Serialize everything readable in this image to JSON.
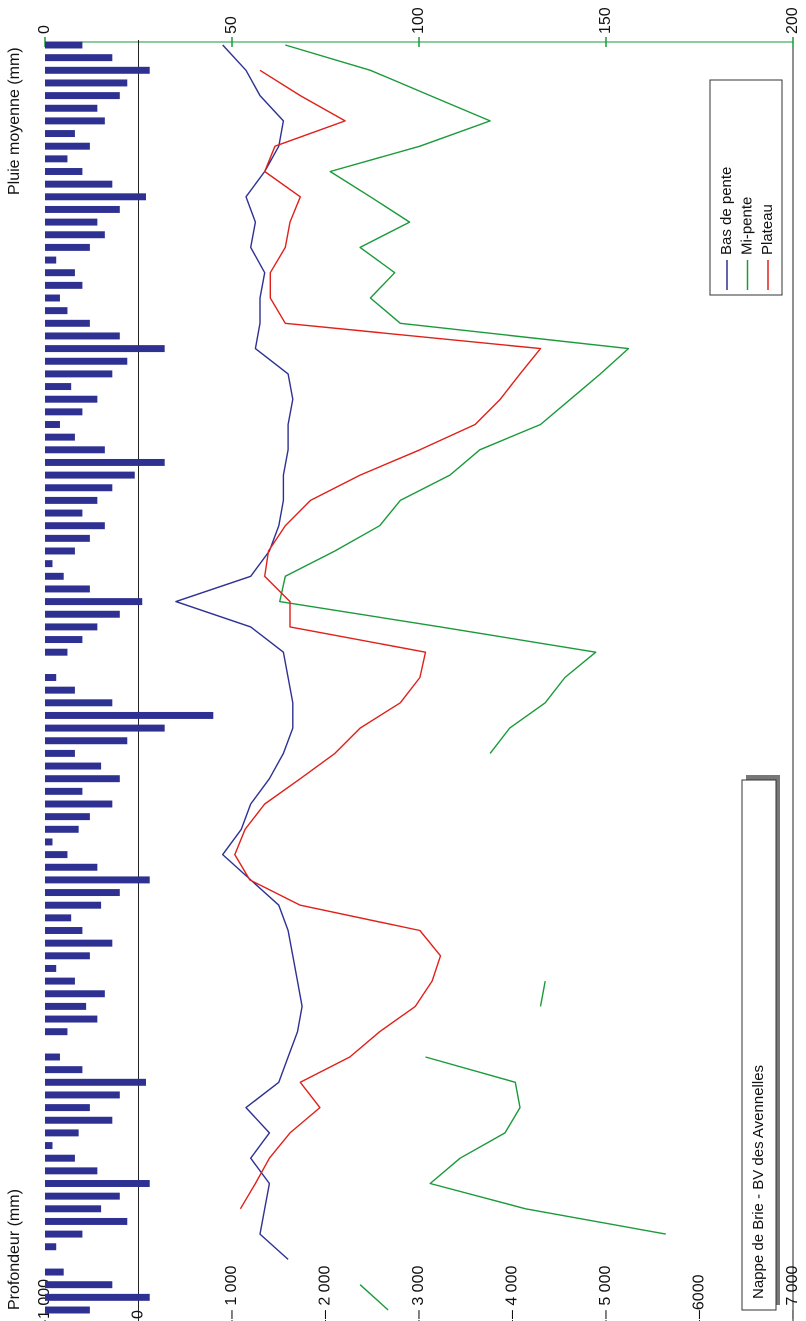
{
  "chart_data": {
    "type": "line",
    "annotation": "Nappe de Brie - BV des Avennelles",
    "y_label": "Profondeur (mm)",
    "y2_label": "Pluie moyenne (mm)",
    "xlim": [
      0,
      100
    ],
    "ylim": [
      -7000,
      1000
    ],
    "yticks": [
      {
        "value": 1000,
        "label": "1 000"
      },
      0,
      {
        "value": -1000,
        "label": "– 1 000"
      },
      {
        "value": -2000,
        "label": "– 2 000"
      },
      {
        "value": -3000,
        "label": "– 3 000"
      },
      {
        "value": -4000,
        "label": "– 4 000"
      },
      {
        "value": -5000,
        "label": "– 5 000"
      },
      {
        "value": -6000,
        "label": "–6000"
      },
      {
        "value": -7000,
        "label": "– 7 000"
      }
    ],
    "y2lim": [
      0,
      200
    ],
    "y2ticks": [
      0,
      50,
      100,
      150,
      200
    ],
    "y2tick_color": "#1a9a3a",
    "legend": "top-right",
    "x": [
      0,
      2,
      4,
      6,
      8,
      10,
      12,
      14,
      16,
      18,
      20,
      22,
      24,
      26,
      28,
      30,
      32,
      34,
      36,
      38,
      40,
      42,
      44,
      46,
      48,
      50,
      52,
      54,
      56,
      58,
      60,
      62,
      64,
      66,
      68,
      70,
      72,
      74,
      76,
      78,
      80,
      82,
      84,
      86,
      88,
      90,
      92,
      94,
      96,
      98,
      100
    ],
    "series": [
      {
        "name": "Bas de pente",
        "color": "#2e3192",
        "values": [
          null,
          null,
          -1600,
          -1300,
          -1350,
          -1400,
          -1200,
          -1400,
          -1150,
          -1500,
          -1600,
          -1700,
          -1750,
          -1700,
          -1650,
          -1600,
          -1500,
          -1200,
          -900,
          -1100,
          -1200,
          -1400,
          -1550,
          -1650,
          -1650,
          -1600,
          -1550,
          -1200,
          -400,
          -1200,
          -1400,
          -1500,
          -1550,
          -1550,
          -1600,
          -1600,
          -1650,
          -1600,
          -1250,
          -1300,
          -1300,
          -1350,
          -1200,
          -1250,
          -1150,
          -1350,
          -1500,
          -1550,
          -1300,
          -1150,
          -900
        ]
      },
      {
        "name": "Mi-pente",
        "color": "#1a9a3a",
        "values": [
          -2670,
          -2370,
          null,
          -5640,
          -4140,
          -3120,
          -3440,
          -3920,
          -4080,
          -4030,
          -3070,
          null,
          -4300,
          -4350,
          null,
          null,
          null,
          null,
          null,
          null,
          null,
          null,
          -3760,
          -3970,
          -4350,
          -4560,
          -4890,
          -3230,
          -1510,
          -1570,
          -2100,
          -2580,
          -2800,
          -3330,
          -3650,
          -4300,
          -4620,
          -4940,
          -5240,
          -2800,
          -2480,
          -2740,
          -2370,
          -2900,
          -2480,
          -2050,
          -3010,
          -3760,
          -3120,
          -2480,
          -1570
        ]
      },
      {
        "name": "Plateau",
        "color": "#e0201a",
        "values": [
          null,
          null,
          null,
          null,
          -1090,
          -1250,
          -1400,
          -1620,
          -1940,
          -1730,
          -2260,
          -2580,
          -2960,
          -3140,
          -3230,
          -3010,
          -1730,
          -1190,
          -1030,
          -1140,
          -1350,
          -1730,
          -2100,
          -2370,
          -2800,
          -3010,
          -3070,
          -1620,
          -1620,
          -1350,
          -1390,
          -1570,
          -1840,
          -2370,
          -3010,
          -3600,
          -3870,
          -4080,
          -4300,
          -1570,
          -1410,
          -1410,
          -1570,
          -1620,
          -1730,
          -1350,
          -1460,
          -2210,
          -1730,
          -1300,
          null
        ]
      }
    ],
    "rain": {
      "type": "bar",
      "axis": "y2",
      "color": "#2e3192",
      "x": [
        0,
        1,
        2,
        3,
        4,
        5,
        6,
        7,
        8,
        9,
        10,
        11,
        12,
        13,
        14,
        15,
        16,
        17,
        18,
        19,
        20,
        21,
        22,
        23,
        24,
        25,
        26,
        27,
        28,
        29,
        30,
        31,
        32,
        33,
        34,
        35,
        36,
        37,
        38,
        39,
        40,
        41,
        42,
        43,
        44,
        45,
        46,
        47,
        48,
        49,
        50,
        51,
        52,
        53,
        54,
        55,
        56,
        57,
        58,
        59,
        60,
        61,
        62,
        63,
        64,
        65,
        66,
        67,
        68,
        69,
        70,
        71,
        72,
        73,
        74,
        75,
        76,
        77,
        78,
        79,
        80,
        81,
        82,
        83,
        84,
        85,
        86,
        87,
        88,
        89,
        90,
        91,
        92,
        93,
        94,
        95,
        96,
        97,
        98,
        99,
        100
      ],
      "values": [
        12,
        28,
        18,
        5,
        0,
        3,
        10,
        22,
        15,
        20,
        28,
        14,
        8,
        2,
        9,
        18,
        12,
        20,
        27,
        10,
        4,
        0,
        6,
        14,
        11,
        16,
        8,
        3,
        12,
        18,
        10,
        7,
        15,
        20,
        28,
        14,
        6,
        2,
        9,
        12,
        18,
        10,
        20,
        15,
        8,
        22,
        32,
        45,
        18,
        8,
        3,
        0,
        6,
        10,
        14,
        20,
        26,
        12,
        5,
        2,
        8,
        12,
        16,
        10,
        14,
        18,
        24,
        32,
        16,
        8,
        4,
        10,
        14,
        7,
        18,
        22,
        32,
        20,
        12,
        6,
        4,
        10,
        8,
        3,
        12,
        16,
        14,
        20,
        27,
        18,
        10,
        6,
        12,
        8,
        16,
        14,
        20,
        22,
        28,
        18,
        10
      ]
    }
  }
}
